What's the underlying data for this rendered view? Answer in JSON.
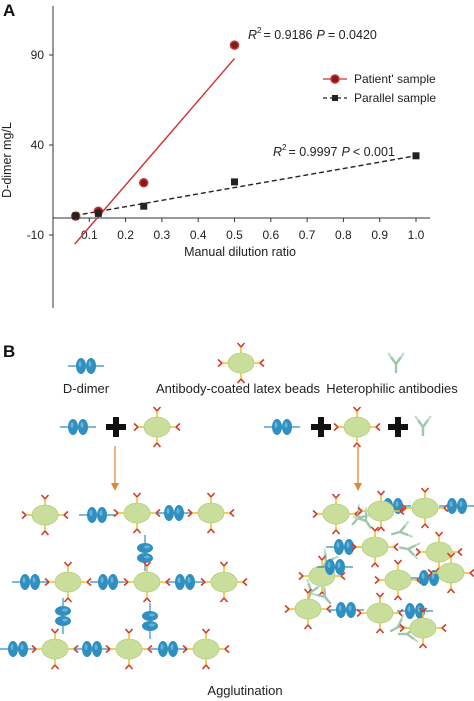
{
  "panel_a": {
    "letter": "A",
    "stats_patient": {
      "r2_value": "= 0.9186",
      "p_value": "= 0.0420"
    },
    "stats_parallel": {
      "r2_value": "= 0.9997",
      "p_value": "< 0.001"
    },
    "r_letter": "R",
    "sup_2": "2",
    "p_letter": "P"
  },
  "chart_data": {
    "type": "scatter",
    "xlabel": "Manual dilution ratio",
    "ylabel": "D-dimer mg/L",
    "xlim": [
      0.0,
      1.0
    ],
    "ylim": [
      -10,
      90
    ],
    "x_ticks": [
      "0.1",
      "0.2",
      "0.3",
      "0.4",
      "0.5",
      "0.6",
      "0.7",
      "0.8",
      "0.9",
      "1.0"
    ],
    "y_ticks": [
      "-10",
      "40",
      "90"
    ],
    "legend_position": "right",
    "series": [
      {
        "name": "Patient' sample",
        "marker": "circle",
        "color": "#d32f2f",
        "x": [
          0.0625,
          0.125,
          0.25,
          0.5
        ],
        "y": [
          0.5,
          3.2,
          19.0,
          95.5
        ],
        "fit_line": {
          "x": [
            0.06,
            0.5
          ],
          "y": [
            -15.0,
            88.0
          ]
        }
      },
      {
        "name": "Parallel sample",
        "marker": "square",
        "color": "#222222",
        "x": [
          0.0625,
          0.125,
          0.25,
          0.5,
          1.0
        ],
        "y": [
          0.6,
          2.0,
          6.0,
          19.5,
          34.0
        ],
        "fit_line": {
          "x": [
            0.06,
            1.0
          ],
          "y": [
            0.8,
            34.0
          ]
        }
      }
    ]
  },
  "panel_b": {
    "letter": "B",
    "legend_labels": {
      "d_dimer": "D-dimer",
      "beads": "Antibody-coated latex beads",
      "hetero": "Heterophilic antibodies"
    },
    "bottom_label": "Agglutination",
    "colors": {
      "bead": "#c9de9a",
      "bead_stroke": "#b5cc86",
      "dimer": "#2f8fc0",
      "antibody_red": "#d33a2a",
      "antibody_yellow": "#f2c230",
      "hetero": "#9cc7a8",
      "arrow": "#e0883a"
    }
  }
}
